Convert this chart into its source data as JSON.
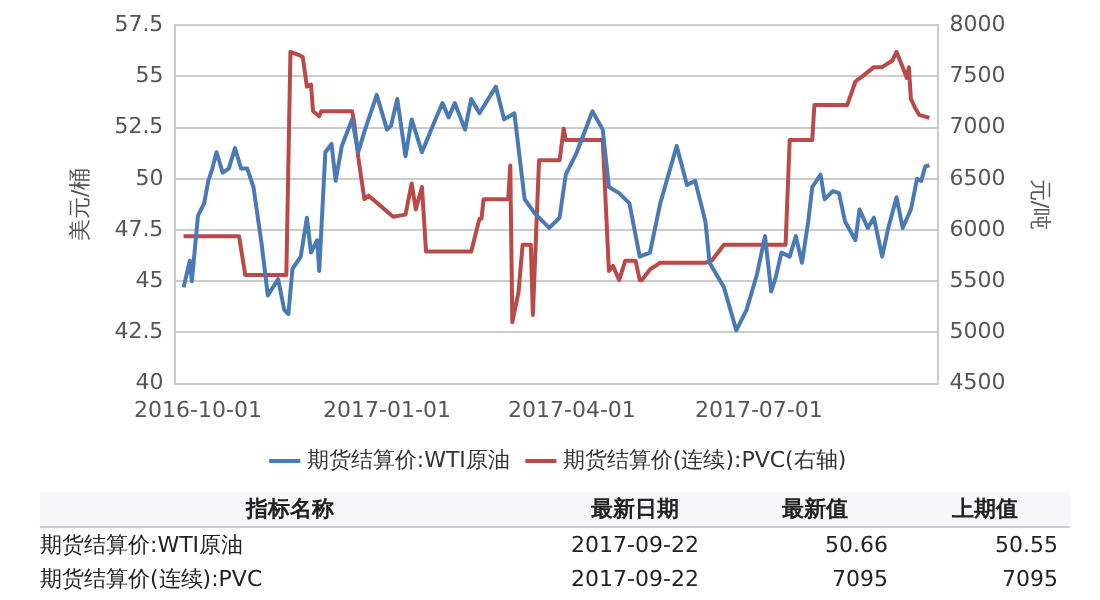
{
  "chart_data": {
    "type": "line",
    "ylabel": "美元/桶",
    "y2label": "元/吨",
    "xlim": [
      "2016-09-20",
      "2017-09-26"
    ],
    "xticks": [
      "2016-10-01",
      "2017-01-01",
      "2017-04-01",
      "2017-07-01"
    ],
    "ylim": [
      40,
      57.5
    ],
    "yticks": [
      40,
      42.5,
      45,
      47.5,
      50,
      52.5,
      55,
      57.5
    ],
    "y2lim": [
      4500,
      8000
    ],
    "y2ticks": [
      4500,
      5000,
      5500,
      6000,
      6500,
      7000,
      7500,
      8000
    ],
    "grid": "y",
    "legend": "bottom",
    "marker": "none",
    "line_style": "solid",
    "series": [
      {
        "name": "期货结算价:WTI原油",
        "color": "#4a7ab5",
        "x": [
          "2016-09-24",
          "2016-09-27",
          "2016-09-28",
          "2016-10-01",
          "2016-10-04",
          "2016-10-06",
          "2016-10-08",
          "2016-10-10",
          "2016-10-13",
          "2016-10-16",
          "2016-10-19",
          "2016-10-22",
          "2016-10-25",
          "2016-10-28",
          "2016-11-01",
          "2016-11-04",
          "2016-11-09",
          "2016-11-12",
          "2016-11-14",
          "2016-11-16",
          "2016-11-20",
          "2016-11-23",
          "2016-11-25",
          "2016-11-28",
          "2016-11-29",
          "2016-12-02",
          "2016-12-05",
          "2016-12-07",
          "2016-12-10",
          "2016-12-15",
          "2016-12-18",
          "2016-12-21",
          "2016-12-27",
          "2017-01-01",
          "2017-01-03",
          "2017-01-06",
          "2017-01-10",
          "2017-01-13",
          "2017-01-18",
          "2017-01-25",
          "2017-01-28",
          "2017-01-31",
          "2017-02-03",
          "2017-02-08",
          "2017-02-11",
          "2017-02-15",
          "2017-02-23",
          "2017-02-27",
          "2017-03-04",
          "2017-03-09",
          "2017-03-14",
          "2017-03-21",
          "2017-03-26",
          "2017-03-29",
          "2017-04-03",
          "2017-04-11",
          "2017-04-16",
          "2017-04-19",
          "2017-04-24",
          "2017-04-29",
          "2017-05-04",
          "2017-05-09",
          "2017-05-14",
          "2017-05-22",
          "2017-05-27",
          "2017-05-31",
          "2017-06-05",
          "2017-06-07",
          "2017-06-14",
          "2017-06-20",
          "2017-06-25",
          "2017-06-30",
          "2017-07-04",
          "2017-07-07",
          "2017-07-09",
          "2017-07-12",
          "2017-07-16",
          "2017-07-19",
          "2017-07-22",
          "2017-07-25",
          "2017-07-27",
          "2017-07-31",
          "2017-08-02",
          "2017-08-06",
          "2017-08-09",
          "2017-08-12",
          "2017-08-17",
          "2017-08-19",
          "2017-08-23",
          "2017-08-26",
          "2017-08-30",
          "2017-09-02",
          "2017-09-06",
          "2017-09-09",
          "2017-09-13",
          "2017-09-16",
          "2017-09-18",
          "2017-09-20",
          "2017-09-22"
        ],
        "values": [
          44.7,
          46.0,
          45.0,
          48.2,
          48.8,
          49.9,
          50.5,
          51.3,
          50.3,
          50.5,
          51.5,
          50.5,
          50.5,
          49.6,
          46.8,
          44.3,
          45.1,
          43.6,
          43.4,
          45.6,
          46.2,
          48.1,
          46.4,
          47.0,
          45.5,
          51.3,
          51.7,
          49.9,
          51.6,
          52.9,
          51.3,
          52.3,
          54.1,
          52.4,
          52.6,
          53.9,
          51.1,
          52.9,
          51.3,
          53.0,
          53.7,
          53.0,
          53.7,
          52.4,
          53.9,
          53.2,
          54.5,
          52.9,
          53.2,
          49.0,
          48.3,
          47.6,
          48.1,
          50.2,
          51.2,
          53.3,
          52.4,
          49.6,
          49.3,
          48.8,
          46.2,
          46.4,
          48.8,
          51.6,
          49.7,
          49.9,
          47.9,
          45.9,
          44.7,
          42.6,
          43.6,
          45.3,
          47.2,
          44.5,
          45.1,
          46.4,
          46.2,
          47.2,
          45.9,
          47.9,
          49.6,
          50.2,
          49.0,
          49.4,
          49.3,
          47.9,
          47.0,
          48.5,
          47.6,
          48.1,
          46.2,
          47.6,
          49.1,
          47.6,
          48.5,
          50.0,
          49.9,
          50.6,
          50.66
        ]
      },
      {
        "name": "期货结算价(连续):PVC(右轴)",
        "color": "#b94a48",
        "axis": "y2",
        "x": [
          "2016-09-24",
          "2016-10-21",
          "2016-10-24",
          "2016-11-13",
          "2016-11-15",
          "2016-11-19",
          "2016-11-21",
          "2016-11-23",
          "2016-11-25",
          "2016-11-26",
          "2016-11-29",
          "2016-11-30",
          "2016-12-15",
          "2016-12-16",
          "2016-12-18",
          "2016-12-21",
          "2016-12-23",
          "2016-12-28",
          "2017-01-04",
          "2017-01-10",
          "2017-01-13",
          "2017-01-15",
          "2017-01-18",
          "2017-01-20",
          "2017-02-11",
          "2017-02-15",
          "2017-02-16",
          "2017-02-17",
          "2017-03-01",
          "2017-03-02",
          "2017-03-03",
          "2017-03-06",
          "2017-03-08",
          "2017-03-12",
          "2017-03-13",
          "2017-03-16",
          "2017-03-26",
          "2017-03-28",
          "2017-03-29",
          "2017-04-16",
          "2017-04-19",
          "2017-04-21",
          "2017-04-24",
          "2017-04-27",
          "2017-05-02",
          "2017-05-04",
          "2017-05-05",
          "2017-05-09",
          "2017-05-14",
          "2017-06-05",
          "2017-06-08",
          "2017-06-14",
          "2017-07-14",
          "2017-07-16",
          "2017-07-27",
          "2017-07-28",
          "2017-08-13",
          "2017-08-17",
          "2017-08-21",
          "2017-08-26",
          "2017-08-30",
          "2017-09-04",
          "2017-09-06",
          "2017-09-09",
          "2017-09-11",
          "2017-09-12",
          "2017-09-13",
          "2017-09-15",
          "2017-09-17",
          "2017-09-22"
        ],
        "values": [
          5940,
          5940,
          5560,
          5560,
          7740,
          7710,
          7690,
          7400,
          7420,
          7160,
          7110,
          7160,
          7160,
          7055,
          6710,
          6300,
          6335,
          6250,
          6130,
          6150,
          6455,
          6200,
          6420,
          5790,
          5790,
          6110,
          6110,
          6300,
          6300,
          6630,
          5100,
          5390,
          5855,
          5855,
          5170,
          6680,
          6680,
          6990,
          6880,
          6880,
          5600,
          5650,
          5510,
          5700,
          5700,
          5510,
          5510,
          5615,
          5680,
          5680,
          5700,
          5855,
          5855,
          6880,
          6880,
          7220,
          7220,
          7450,
          7510,
          7590,
          7590,
          7655,
          7740,
          7590,
          7485,
          7590,
          7280,
          7195,
          7125,
          7095
        ]
      }
    ],
    "annotations": [
      "指标名称",
      "最新日期",
      "最新值",
      "上期值",
      "期货结算价:WTI原油",
      "2017-09-22",
      "50.66",
      "50.55",
      "期货结算价(连续):PVC",
      "2017-09-22",
      "7095",
      "7095"
    ]
  }
}
